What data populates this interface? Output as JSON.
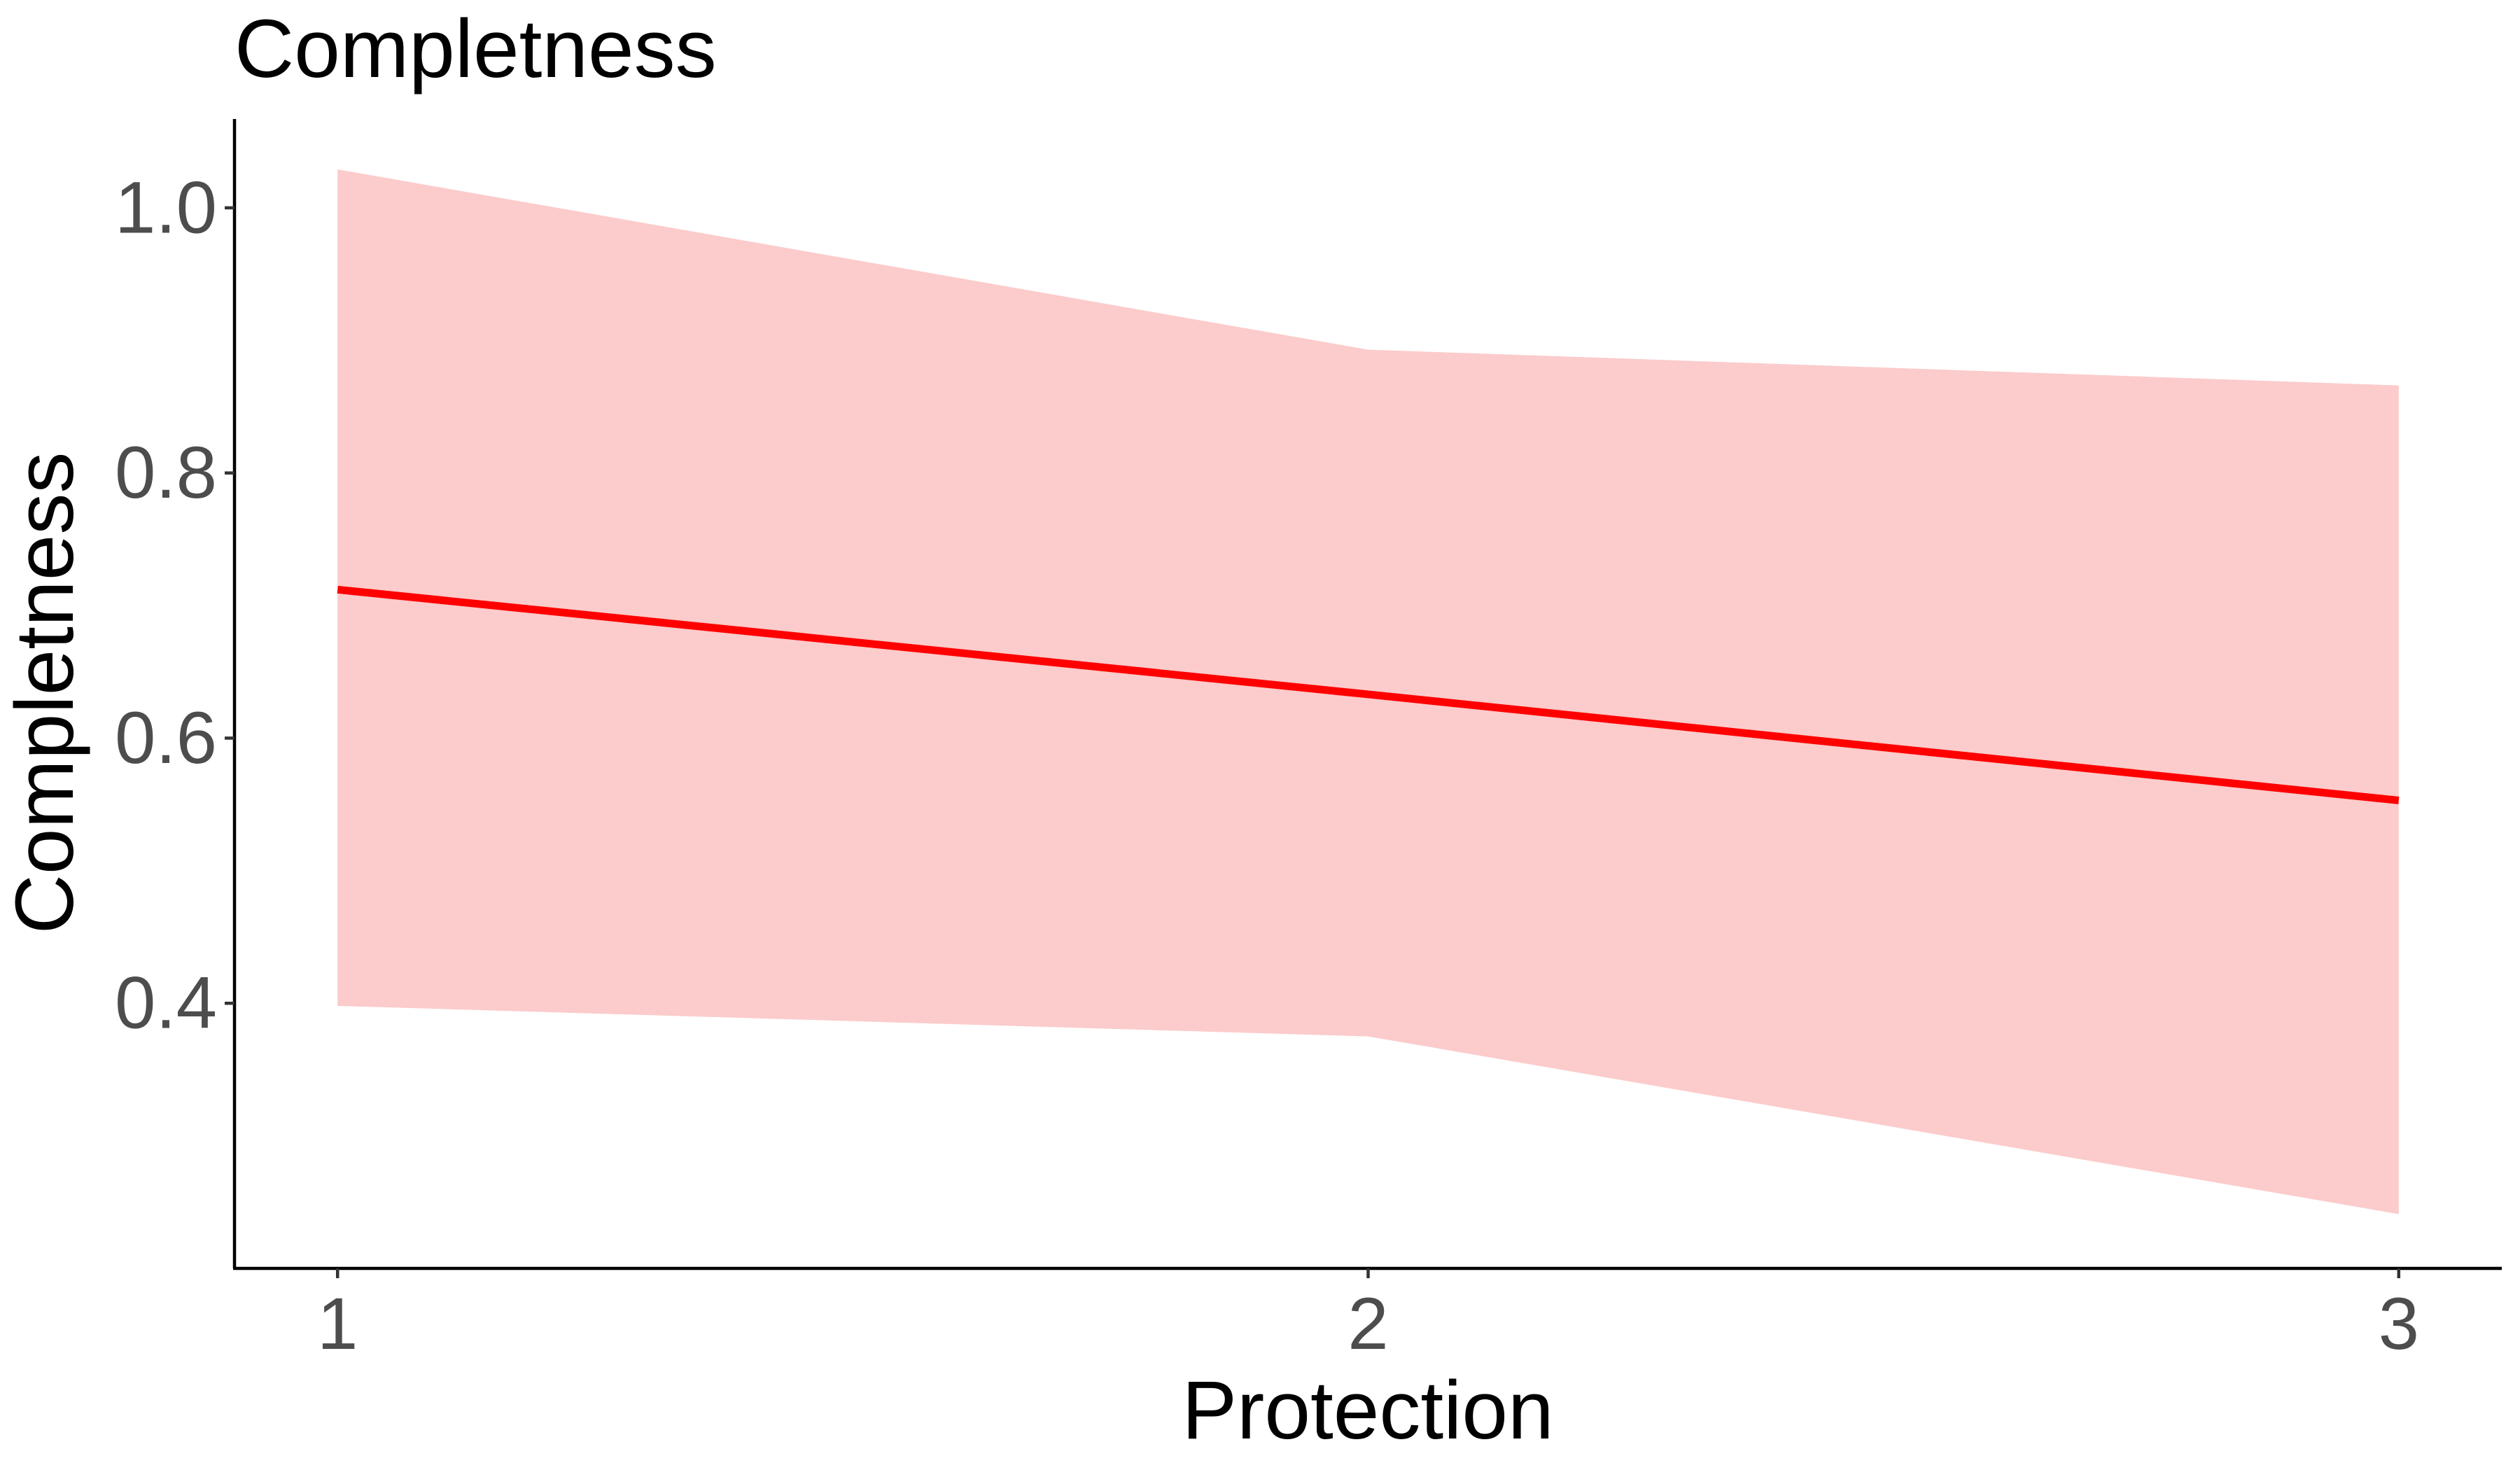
{
  "chart_data": {
    "type": "line",
    "title": "Completness",
    "xlabel": "Protection",
    "ylabel": "Completness",
    "x": [
      1,
      2,
      3
    ],
    "xticks": [
      "1",
      "2",
      "3"
    ],
    "xlim": [
      0.9,
      3.1
    ],
    "yticks": [
      "0.4",
      "0.6",
      "0.8",
      "1.0"
    ],
    "ylim": [
      0.2,
      1.067
    ],
    "grid": false,
    "legend": "none",
    "series": [
      {
        "values": [
          0.712,
          0.633,
          0.553
        ],
        "lower": [
          0.398,
          0.375,
          0.241
        ],
        "upper": [
          1.029,
          0.893,
          0.866
        ],
        "line_color": "#ff0000",
        "band_color": "#fccbcb"
      }
    ]
  }
}
